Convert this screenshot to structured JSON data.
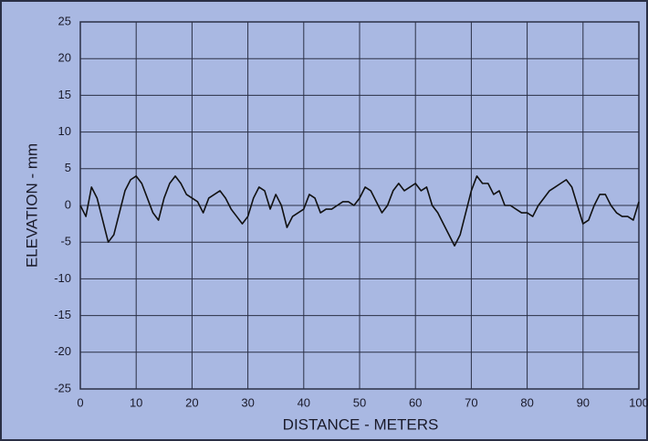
{
  "chart_data": {
    "type": "line",
    "xlabel": "DISTANCE - METERS",
    "ylabel": "ELEVATION - mm",
    "x": [
      0,
      1,
      2,
      3,
      4,
      5,
      6,
      7,
      8,
      9,
      10,
      11,
      12,
      13,
      14,
      15,
      16,
      17,
      18,
      19,
      20,
      21,
      22,
      23,
      24,
      25,
      26,
      27,
      28,
      29,
      30,
      31,
      32,
      33,
      34,
      35,
      36,
      37,
      38,
      39,
      40,
      41,
      42,
      43,
      44,
      45,
      46,
      47,
      48,
      49,
      50,
      51,
      52,
      53,
      54,
      55,
      56,
      57,
      58,
      59,
      60,
      61,
      62,
      63,
      64,
      65,
      66,
      67,
      68,
      69,
      70,
      71,
      72,
      73,
      74,
      75,
      76,
      77,
      78,
      79,
      80,
      81,
      82,
      83,
      84,
      85,
      86,
      87,
      88,
      89,
      90,
      91,
      92,
      93,
      94,
      95,
      96,
      97,
      98,
      99,
      100
    ],
    "values": [
      0,
      -1.5,
      2.5,
      1,
      -2,
      -5,
      -4,
      -1,
      2,
      3.5,
      4,
      3,
      1,
      -1,
      -2,
      1,
      3,
      4,
      3,
      1.5,
      1,
      0.5,
      -1,
      1,
      1.5,
      2,
      1,
      -0.5,
      -1.5,
      -2.5,
      -1.5,
      1,
      2.5,
      2,
      -0.5,
      1.5,
      0,
      -3,
      -1.5,
      -1,
      -0.5,
      1.5,
      1,
      -1,
      -0.5,
      -0.5,
      0,
      0.5,
      0.5,
      0,
      1,
      2.5,
      2,
      0.5,
      -1,
      0,
      2,
      3,
      2,
      2.5,
      3,
      2,
      2.5,
      0,
      -1,
      -2.5,
      -4,
      -5.5,
      -4,
      -1,
      2,
      4,
      3,
      3,
      1.5,
      2,
      0,
      0,
      -0.5,
      -1,
      -1,
      -1.5,
      0,
      1,
      2,
      2.5,
      3,
      3.5,
      2.5,
      0,
      -2.5,
      -2,
      0,
      1.5,
      1.5,
      0,
      -1,
      -1.5,
      -1.5,
      -2,
      0.5
    ],
    "color": "#111111",
    "xlim": [
      0,
      100
    ],
    "xticks": [
      0,
      10,
      20,
      30,
      40,
      50,
      60,
      70,
      80,
      90,
      100
    ],
    "ylim": [
      -25,
      25
    ],
    "yticks": [
      -25,
      -20,
      -15,
      -10,
      -5,
      0,
      5,
      10,
      15,
      20,
      25
    ],
    "grid": true
  }
}
